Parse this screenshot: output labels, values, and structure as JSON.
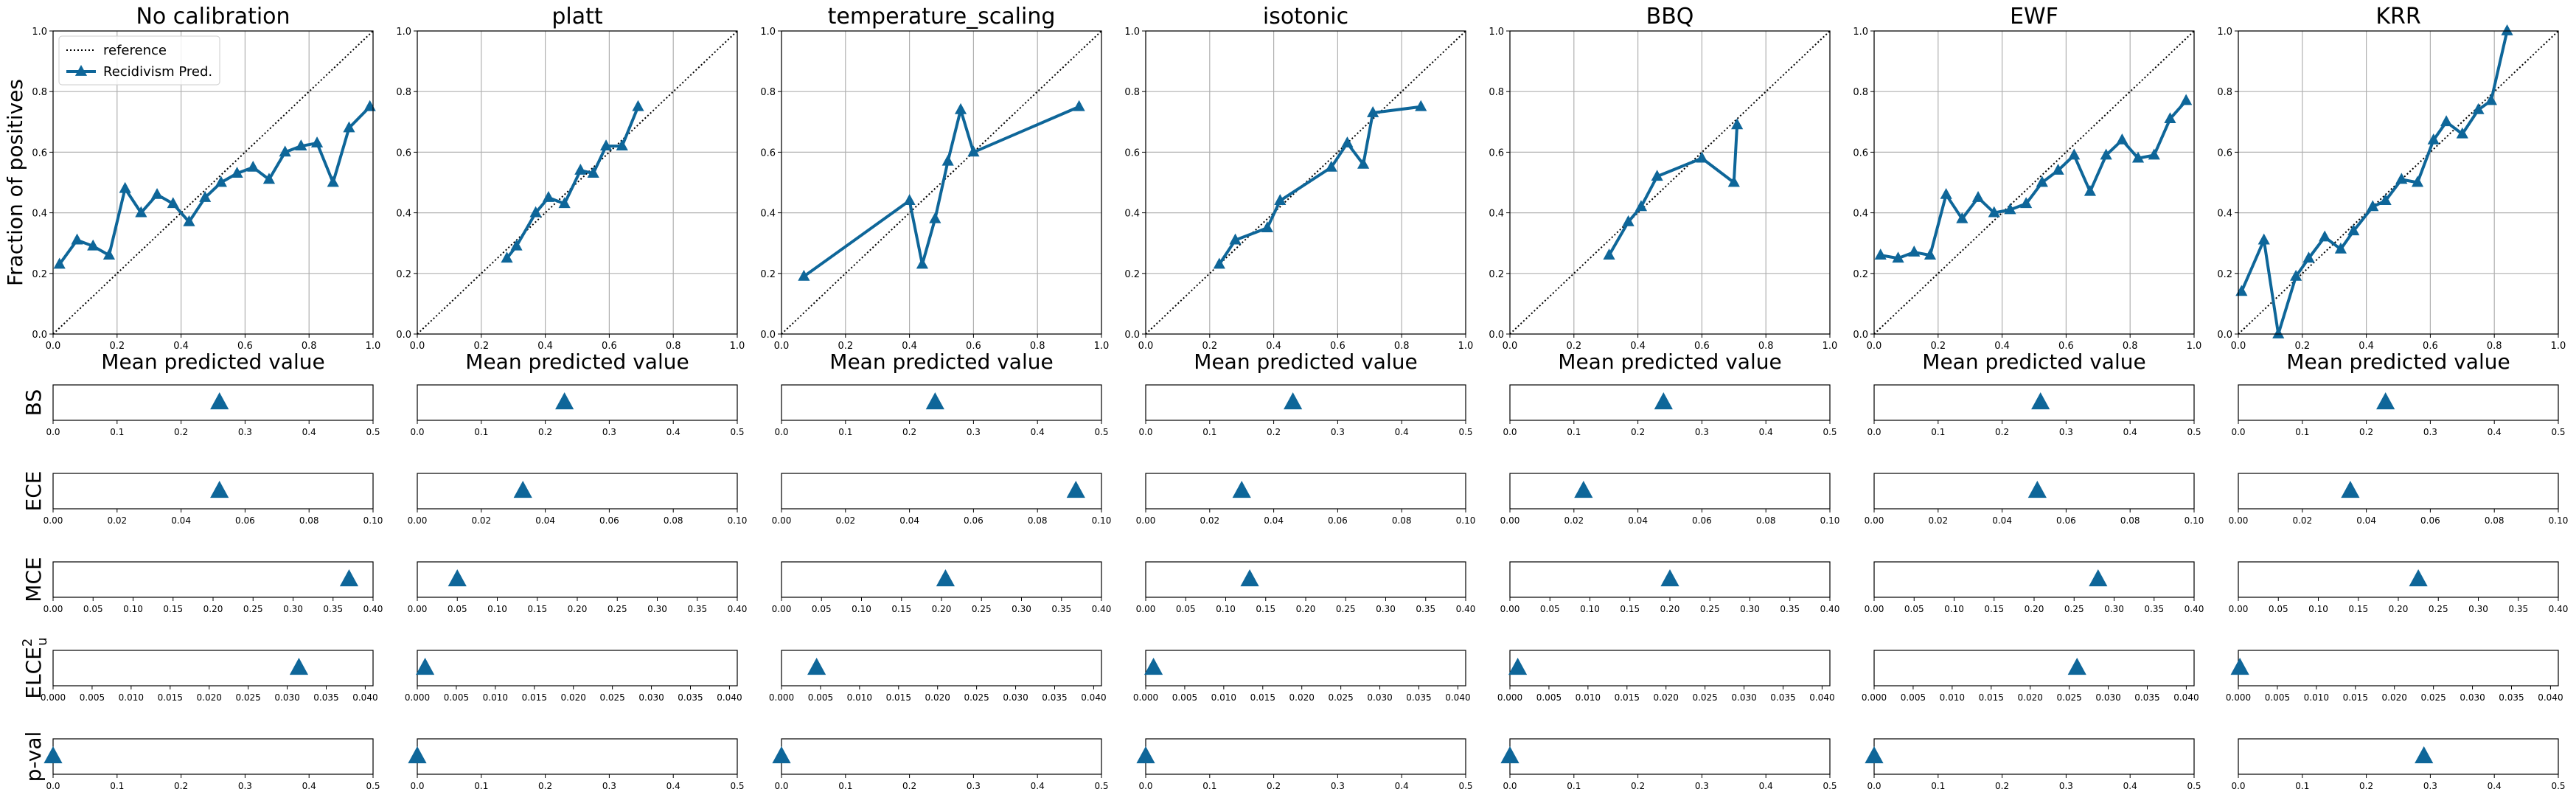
{
  "legend": {
    "reference": "reference",
    "series": "Recidivism Pred."
  },
  "calibration_ylabel": "Fraction of positives",
  "calibration_xlabel": "Mean predicted value",
  "colors": {
    "series": "#0e6699",
    "reference": "#000000",
    "grid": "#b0b0b0"
  },
  "chart_data": [
    {
      "type": "line",
      "title": "No calibration",
      "xlabel": "Mean predicted value",
      "ylabel": "Fraction of positives",
      "xlim": [
        0,
        1
      ],
      "ylim": [
        0,
        1
      ],
      "grid": true,
      "legend_position": "top-left",
      "series": [
        {
          "name": "Recidivism Pred.",
          "marker": "triangle",
          "x": [
            0.02,
            0.075,
            0.125,
            0.175,
            0.225,
            0.275,
            0.325,
            0.375,
            0.425,
            0.475,
            0.525,
            0.575,
            0.625,
            0.675,
            0.725,
            0.775,
            0.825,
            0.875,
            0.925,
            0.99
          ],
          "y": [
            0.23,
            0.31,
            0.29,
            0.26,
            0.48,
            0.4,
            0.46,
            0.43,
            0.37,
            0.45,
            0.5,
            0.53,
            0.55,
            0.51,
            0.6,
            0.62,
            0.63,
            0.5,
            0.68,
            0.75
          ]
        }
      ]
    },
    {
      "type": "line",
      "title": "platt",
      "xlabel": "Mean predicted value",
      "xlim": [
        0,
        1
      ],
      "ylim": [
        0,
        1
      ],
      "grid": true,
      "series": [
        {
          "name": "Recidivism Pred.",
          "marker": "triangle",
          "x": [
            0.28,
            0.31,
            0.37,
            0.41,
            0.46,
            0.51,
            0.55,
            0.59,
            0.64,
            0.69
          ],
          "y": [
            0.25,
            0.29,
            0.4,
            0.45,
            0.43,
            0.54,
            0.53,
            0.62,
            0.62,
            0.75
          ]
        }
      ]
    },
    {
      "type": "line",
      "title": "temperature_scaling",
      "xlabel": "Mean predicted value",
      "xlim": [
        0,
        1
      ],
      "ylim": [
        0,
        1
      ],
      "grid": true,
      "series": [
        {
          "name": "Recidivism Pred.",
          "marker": "triangle",
          "x": [
            0.07,
            0.4,
            0.44,
            0.48,
            0.52,
            0.56,
            0.6,
            0.93
          ],
          "y": [
            0.19,
            0.44,
            0.23,
            0.38,
            0.57,
            0.74,
            0.6,
            0.75
          ]
        }
      ]
    },
    {
      "type": "line",
      "title": "isotonic",
      "xlabel": "Mean predicted value",
      "xlim": [
        0,
        1
      ],
      "ylim": [
        0,
        1
      ],
      "grid": true,
      "series": [
        {
          "name": "Recidivism Pred.",
          "marker": "triangle",
          "x": [
            0.23,
            0.28,
            0.38,
            0.42,
            0.58,
            0.63,
            0.68,
            0.71,
            0.86
          ],
          "y": [
            0.23,
            0.31,
            0.35,
            0.44,
            0.55,
            0.63,
            0.56,
            0.73,
            0.75
          ]
        }
      ]
    },
    {
      "type": "line",
      "title": "BBQ",
      "xlabel": "Mean predicted value",
      "xlim": [
        0,
        1
      ],
      "ylim": [
        0,
        1
      ],
      "grid": true,
      "series": [
        {
          "name": "Recidivism Pred.",
          "marker": "triangle",
          "x": [
            0.31,
            0.37,
            0.41,
            0.46,
            0.6,
            0.7,
            0.71
          ],
          "y": [
            0.26,
            0.37,
            0.42,
            0.52,
            0.58,
            0.5,
            0.69
          ]
        }
      ]
    },
    {
      "type": "line",
      "title": "EWF",
      "xlabel": "Mean predicted value",
      "xlim": [
        0,
        1
      ],
      "ylim": [
        0,
        1
      ],
      "grid": true,
      "series": [
        {
          "name": "Recidivism Pred.",
          "marker": "triangle",
          "x": [
            0.02,
            0.075,
            0.125,
            0.175,
            0.225,
            0.275,
            0.325,
            0.375,
            0.425,
            0.475,
            0.525,
            0.575,
            0.625,
            0.675,
            0.725,
            0.775,
            0.825,
            0.875,
            0.925,
            0.975
          ],
          "y": [
            0.26,
            0.25,
            0.27,
            0.26,
            0.46,
            0.38,
            0.45,
            0.4,
            0.41,
            0.43,
            0.5,
            0.54,
            0.59,
            0.47,
            0.59,
            0.64,
            0.58,
            0.59,
            0.71,
            0.77
          ]
        }
      ]
    },
    {
      "type": "line",
      "title": "KRR",
      "xlabel": "Mean predicted value",
      "xlim": [
        0,
        1
      ],
      "ylim": [
        0,
        1
      ],
      "grid": true,
      "series": [
        {
          "name": "Recidivism Pred.",
          "marker": "triangle",
          "x": [
            0.01,
            0.08,
            0.125,
            0.18,
            0.22,
            0.27,
            0.32,
            0.36,
            0.42,
            0.46,
            0.51,
            0.56,
            0.61,
            0.65,
            0.7,
            0.75,
            0.79,
            0.84
          ],
          "y": [
            0.14,
            0.31,
            0.0,
            0.19,
            0.25,
            0.32,
            0.28,
            0.34,
            0.42,
            0.44,
            0.51,
            0.5,
            0.64,
            0.7,
            0.66,
            0.74,
            0.77,
            1.0
          ]
        }
      ]
    },
    {
      "type": "scatter",
      "metric": "BS",
      "xlim": [
        0,
        0.5
      ],
      "ticks": [
        "0.0",
        "0.1",
        "0.2",
        "0.3",
        "0.4",
        "0.5"
      ],
      "values": [
        0.26,
        0.23,
        0.24,
        0.23,
        0.24,
        0.26,
        0.23
      ]
    },
    {
      "type": "scatter",
      "metric": "ECE",
      "xlim": [
        0,
        0.1
      ],
      "ticks": [
        "0.00",
        "0.02",
        "0.04",
        "0.06",
        "0.08",
        "0.10"
      ],
      "values": [
        0.052,
        0.033,
        0.092,
        0.03,
        0.023,
        0.051,
        0.035
      ]
    },
    {
      "type": "scatter",
      "metric": "MCE",
      "xlim": [
        0,
        0.4
      ],
      "ticks": [
        "0.00",
        "0.05",
        "0.10",
        "0.15",
        "0.20",
        "0.25",
        "0.30",
        "0.35",
        "0.40"
      ],
      "values": [
        0.37,
        0.05,
        0.205,
        0.13,
        0.2,
        0.28,
        0.225
      ]
    },
    {
      "type": "scatter",
      "metric": "ELCE",
      "metric_superscript": "2",
      "metric_subscript": "u",
      "xlim": [
        0,
        0.041
      ],
      "ticks": [
        "0.000",
        "0.005",
        "0.010",
        "0.015",
        "0.020",
        "0.025",
        "0.030",
        "0.035",
        "0.040"
      ],
      "values": [
        0.0315,
        0.001,
        0.0045,
        0.001,
        0.001,
        0.026,
        0.0002
      ]
    },
    {
      "type": "scatter",
      "metric": "p-val",
      "xlim": [
        0,
        0.5
      ],
      "ticks": [
        "0.0",
        "0.1",
        "0.2",
        "0.3",
        "0.4",
        "0.5"
      ],
      "values": [
        0.0,
        0.0,
        0.0,
        0.0,
        0.0,
        0.0,
        0.29
      ]
    }
  ]
}
